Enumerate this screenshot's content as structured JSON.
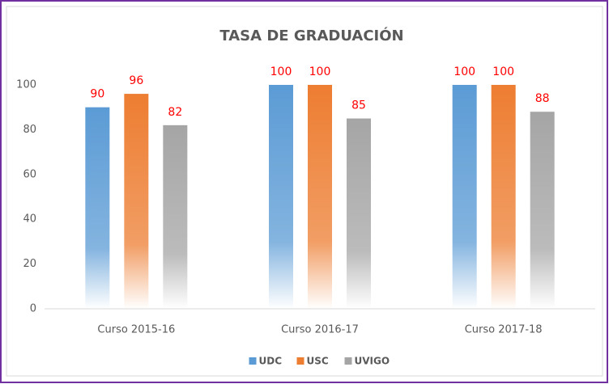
{
  "chart_data": {
    "type": "bar",
    "title": "TASA DE GRADUACIÓN",
    "categories": [
      "Curso 2015-16",
      "Curso 2016-17",
      "Curso 2017-18"
    ],
    "series": [
      {
        "name": "UDC",
        "color": "#5b9bd5",
        "values": [
          90,
          100,
          100
        ]
      },
      {
        "name": "USC",
        "color": "#ed7d31",
        "values": [
          96,
          100,
          100
        ]
      },
      {
        "name": "UVIGO",
        "color": "#a5a5a5",
        "values": [
          82,
          85,
          88
        ]
      }
    ],
    "label_color": "#ff0000",
    "ylim": [
      0,
      100
    ],
    "yticks": [
      0,
      20,
      40,
      60,
      80,
      100
    ],
    "grid": false,
    "legend": "bottom"
  }
}
